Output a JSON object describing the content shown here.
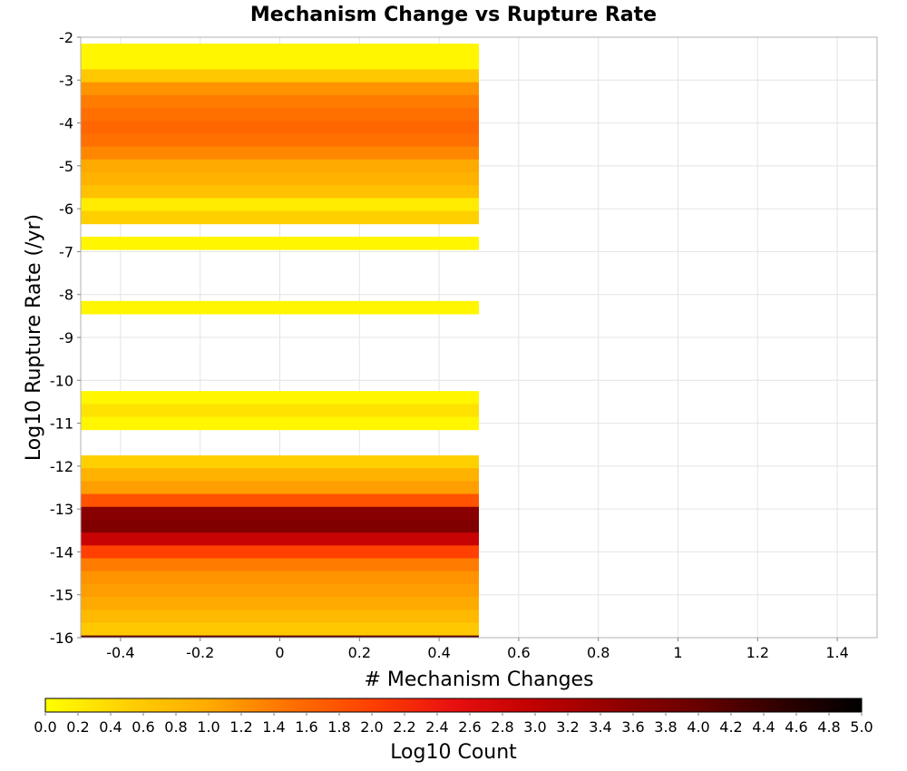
{
  "chart_data": {
    "type": "heatmap",
    "title": "Mechanism Change vs Rupture Rate",
    "xlabel": "# Mechanism Changes",
    "ylabel": "Log10 Rupture Rate (/yr)",
    "xlim": [
      -0.5,
      1.5
    ],
    "ylim": [
      -16,
      -2
    ],
    "x_ticks": [
      -0.4,
      -0.2,
      0,
      0.2,
      0.4,
      0.6,
      0.8,
      1,
      1.2,
      1.4
    ],
    "x_tick_labels": [
      "-0.4",
      "-0.2",
      "0",
      "0.2",
      "0.4",
      "0.6",
      "0.8",
      "1",
      "1.2",
      "1.4"
    ],
    "y_ticks": [
      -2,
      -3,
      -4,
      -5,
      -6,
      -7,
      -8,
      -9,
      -10,
      -11,
      -12,
      -13,
      -14,
      -15,
      -16
    ],
    "y_tick_labels": [
      "-2",
      "-3",
      "-4",
      "-5",
      "-6",
      "-7",
      "-8",
      "-9",
      "-10",
      "-11",
      "-12",
      "-13",
      "-14",
      "-15",
      "-16"
    ],
    "grid": true,
    "cell_x_range": [
      -0.5,
      0.5
    ],
    "cell_height": 0.3,
    "cells": [
      {
        "x": 0,
        "y": -2.3,
        "value": 0.1
      },
      {
        "x": 0,
        "y": -2.6,
        "value": 0.1
      },
      {
        "x": 0,
        "y": -2.9,
        "value": 0.6
      },
      {
        "x": 0,
        "y": -3.2,
        "value": 1.2
      },
      {
        "x": 0,
        "y": -3.5,
        "value": 1.4
      },
      {
        "x": 0,
        "y": -3.8,
        "value": 1.5
      },
      {
        "x": 0,
        "y": -4.1,
        "value": 1.6
      },
      {
        "x": 0,
        "y": -4.4,
        "value": 1.5
      },
      {
        "x": 0,
        "y": -4.7,
        "value": 1.3
      },
      {
        "x": 0,
        "y": -5.0,
        "value": 1.0
      },
      {
        "x": 0,
        "y": -5.3,
        "value": 0.9
      },
      {
        "x": 0,
        "y": -5.6,
        "value": 0.7
      },
      {
        "x": 0,
        "y": -5.9,
        "value": 0.2
      },
      {
        "x": 0,
        "y": -6.2,
        "value": 0.5
      },
      {
        "x": 0,
        "y": -6.8,
        "value": 0.1
      },
      {
        "x": 0,
        "y": -8.3,
        "value": 0.1
      },
      {
        "x": 0,
        "y": -10.4,
        "value": 0.1
      },
      {
        "x": 0,
        "y": -10.7,
        "value": 0.3
      },
      {
        "x": 0,
        "y": -11.0,
        "value": 0.1
      },
      {
        "x": 0,
        "y": -11.9,
        "value": 0.5
      },
      {
        "x": 0,
        "y": -12.2,
        "value": 0.9
      },
      {
        "x": 0,
        "y": -12.5,
        "value": 1.1
      },
      {
        "x": 0,
        "y": -12.8,
        "value": 1.8
      },
      {
        "x": 0,
        "y": -13.1,
        "value": 3.6
      },
      {
        "x": 0,
        "y": -13.4,
        "value": 3.7
      },
      {
        "x": 0,
        "y": -13.7,
        "value": 2.9
      },
      {
        "x": 0,
        "y": -14.0,
        "value": 2.0
      },
      {
        "x": 0,
        "y": -14.3,
        "value": 1.4
      },
      {
        "x": 0,
        "y": -14.6,
        "value": 1.2
      },
      {
        "x": 0,
        "y": -14.9,
        "value": 1.1
      },
      {
        "x": 0,
        "y": -15.2,
        "value": 1.0
      },
      {
        "x": 0,
        "y": -15.5,
        "value": 0.8
      },
      {
        "x": 0,
        "y": -15.8,
        "value": 0.6
      },
      {
        "x": 0,
        "y": -16.1,
        "value": 4.2
      }
    ],
    "colorbar": {
      "label": "Log10 Count",
      "range": [
        0.0,
        5.0
      ],
      "ticks": [
        0.0,
        0.2,
        0.4,
        0.6,
        0.8,
        1.0,
        1.2,
        1.4,
        1.6,
        1.8,
        2.0,
        2.2,
        2.4,
        2.6,
        2.8,
        3.0,
        3.2,
        3.4,
        3.6,
        3.8,
        4.0,
        4.2,
        4.4,
        4.6,
        4.8,
        5.0
      ],
      "tick_labels": [
        "0.0",
        "0.2",
        "0.4",
        "0.6",
        "0.8",
        "1.0",
        "1.2",
        "1.4",
        "1.6",
        "1.8",
        "2.0",
        "2.2",
        "2.4",
        "2.6",
        "2.8",
        "3.0",
        "3.2",
        "3.4",
        "3.6",
        "3.8",
        "4.0",
        "4.2",
        "4.4",
        "4.6",
        "4.8",
        "5.0"
      ],
      "stops": [
        {
          "v": 0.0,
          "color": "#ffff00"
        },
        {
          "v": 0.5,
          "color": "#ffd000"
        },
        {
          "v": 1.0,
          "color": "#ffaa00"
        },
        {
          "v": 1.5,
          "color": "#ff7000"
        },
        {
          "v": 2.0,
          "color": "#ff4000"
        },
        {
          "v": 2.5,
          "color": "#e81010"
        },
        {
          "v": 3.0,
          "color": "#c00000"
        },
        {
          "v": 3.5,
          "color": "#900000"
        },
        {
          "v": 4.0,
          "color": "#680000"
        },
        {
          "v": 4.5,
          "color": "#300000"
        },
        {
          "v": 5.0,
          "color": "#000000"
        }
      ]
    }
  }
}
